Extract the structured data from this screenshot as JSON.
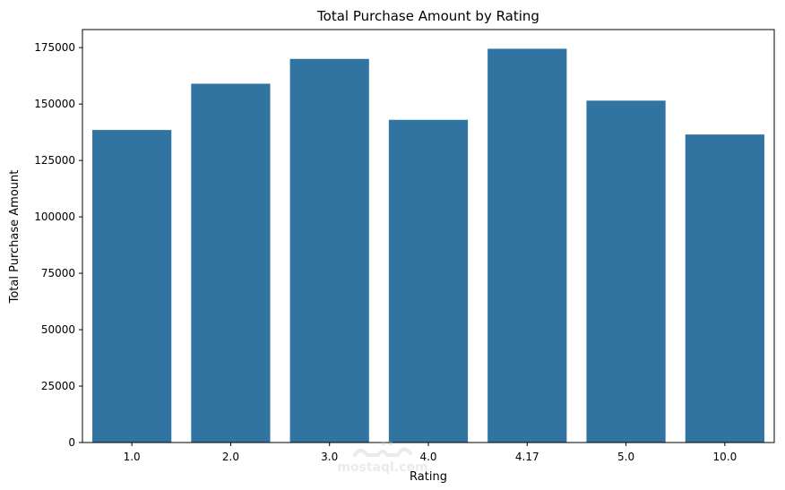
{
  "chart_data": {
    "type": "bar",
    "title": "Total Purchase Amount by Rating",
    "xlabel": "Rating",
    "ylabel": "Total Purchase Amount",
    "categories": [
      "1.0",
      "2.0",
      "3.0",
      "4.0",
      "4.17",
      "5.0",
      "10.0"
    ],
    "values": [
      138500,
      159000,
      170000,
      143000,
      174500,
      151500,
      136500
    ],
    "ylim": [
      0,
      183000
    ],
    "yticks": [
      0,
      25000,
      50000,
      75000,
      100000,
      125000,
      150000,
      175000
    ],
    "ytick_labels": [
      "0",
      "25000",
      "50000",
      "75000",
      "100000",
      "125000",
      "150000",
      "175000"
    ],
    "bar_color": "#3274a1",
    "grid": false,
    "legend": "none"
  },
  "watermark": {
    "text": "mostaql.com",
    "icon": "mostaql-logo-icon"
  }
}
